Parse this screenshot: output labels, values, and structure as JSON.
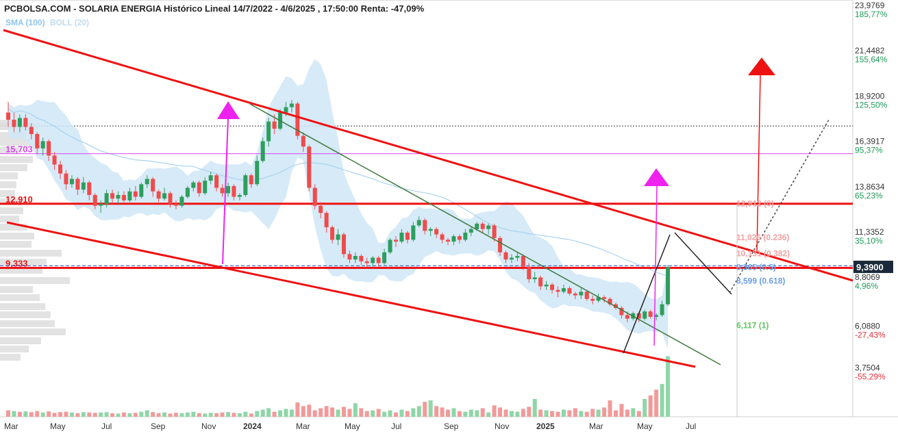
{
  "header": {
    "title": "PCBOLSA.COM - SOLARIA ENERGIA Histórico Lineal 14/7/2022 - 4/6/2025 , 17:50:00 Renta: -47,09%",
    "indicators": {
      "sma": "SMA (100)",
      "boll": "BOLL (20)"
    }
  },
  "chart_data": {
    "type": "candlestick",
    "ylim": [
      2.4,
      23.9769
    ],
    "price_labels": [
      {
        "price": "23,9769",
        "pct": "185,77%"
      },
      {
        "price": "21,4482",
        "pct": "155,64%"
      },
      {
        "price": "18,9200",
        "pct": "125,50%"
      },
      {
        "price": "16,3917",
        "pct": "95,37%"
      },
      {
        "price": "13,8634",
        "pct": "65,23%"
      },
      {
        "price": "11,3352",
        "pct": "35,10%"
      },
      {
        "price": "8,8069",
        "pct": "4,96%"
      },
      {
        "price": "6,0880",
        "pct": "-27,43%"
      },
      {
        "price": "3,7504",
        "pct": "-55,29%"
      }
    ],
    "last_price": {
      "value": 9.39,
      "label": "9,3900"
    },
    "x_labels": [
      {
        "label": "Mar",
        "bold": false
      },
      {
        "label": "May",
        "bold": false
      },
      {
        "label": "Jul",
        "bold": false
      },
      {
        "label": "Sep",
        "bold": false
      },
      {
        "label": "Nov",
        "bold": false
      },
      {
        "label": "2024",
        "bold": true
      },
      {
        "label": "Mar",
        "bold": false
      },
      {
        "label": "May",
        "bold": false
      },
      {
        "label": "Jul",
        "bold": false
      },
      {
        "label": "Sep",
        "bold": false
      },
      {
        "label": "Nov",
        "bold": false
      },
      {
        "label": "2025",
        "bold": true
      },
      {
        "label": "Mar",
        "bold": false
      },
      {
        "label": "May",
        "bold": false
      },
      {
        "label": "Jul",
        "bold": false
      }
    ],
    "levels": [
      {
        "label": "15,703",
        "value": 15.703,
        "color": "#d946ef"
      },
      {
        "label": "12,910",
        "value": 12.91,
        "color": "#ee1111"
      },
      {
        "label": "9,333",
        "value": 9.333,
        "color": "#ee1111"
      }
    ],
    "fibonacci": [
      {
        "label": "12,912 (0)",
        "value": 12.912,
        "color": "#f2a0a0"
      },
      {
        "label": "11,026 (0.236)",
        "value": 11.026,
        "color": "#f2a0a0"
      },
      {
        "label": "10,131 (0.382)",
        "value": 10.131,
        "color": "#f2a0a0"
      },
      {
        "label": "9,365 (0.5)",
        "value": 9.365,
        "color": "#6a9ee8"
      },
      {
        "label": "8,599 (0.618)",
        "value": 8.599,
        "color": "#6a9ee8"
      },
      {
        "label": "6,117 (1)",
        "value": 6.117,
        "color": "#5cc45c"
      }
    ],
    "colors": {
      "up": "#2e9e5e",
      "down": "#ef4b4b",
      "vol_up": "#8fd6a8",
      "vol_down": "#f29a9a",
      "band": "#cfe6f7",
      "sma": "#a8d2f0"
    },
    "candles": [
      [
        18.0,
        18.6,
        17.2,
        17.6
      ],
      [
        17.6,
        18.0,
        16.9,
        17.2
      ],
      [
        17.2,
        17.9,
        16.9,
        17.7
      ],
      [
        17.7,
        17.9,
        17.0,
        17.2
      ],
      [
        17.2,
        17.4,
        16.5,
        16.8
      ],
      [
        16.8,
        16.9,
        15.7,
        16.0
      ],
      [
        16.0,
        16.6,
        15.6,
        16.4
      ],
      [
        16.4,
        16.5,
        15.3,
        15.6
      ],
      [
        15.6,
        15.8,
        14.8,
        15.1
      ],
      [
        15.1,
        15.3,
        14.3,
        14.6
      ],
      [
        14.6,
        14.8,
        13.7,
        14.0
      ],
      [
        14.0,
        14.5,
        13.8,
        14.3
      ],
      [
        14.3,
        14.4,
        13.4,
        13.7
      ],
      [
        13.7,
        14.4,
        13.5,
        14.1
      ],
      [
        14.1,
        14.2,
        13.1,
        13.4
      ],
      [
        13.4,
        13.5,
        12.6,
        12.8
      ],
      [
        12.8,
        13.1,
        12.4,
        12.9
      ],
      [
        12.9,
        13.7,
        12.7,
        13.5
      ],
      [
        13.5,
        13.7,
        12.9,
        13.2
      ],
      [
        13.2,
        13.6,
        12.9,
        13.4
      ],
      [
        13.4,
        13.6,
        13.0,
        13.1
      ],
      [
        13.1,
        13.8,
        13.0,
        13.6
      ],
      [
        13.6,
        13.9,
        13.1,
        13.3
      ],
      [
        13.3,
        14.1,
        13.2,
        14.0
      ],
      [
        14.0,
        14.5,
        13.8,
        14.3
      ],
      [
        14.3,
        14.4,
        13.3,
        13.6
      ],
      [
        13.6,
        13.7,
        13.0,
        13.2
      ],
      [
        13.2,
        13.8,
        13.1,
        13.5
      ],
      [
        13.5,
        13.6,
        12.7,
        12.9
      ],
      [
        12.9,
        13.1,
        12.6,
        12.8
      ],
      [
        12.8,
        13.4,
        12.7,
        13.3
      ],
      [
        13.3,
        13.9,
        13.2,
        13.8
      ],
      [
        13.8,
        14.2,
        13.6,
        14.1
      ],
      [
        14.1,
        14.2,
        13.3,
        13.5
      ],
      [
        13.5,
        14.4,
        13.4,
        14.2
      ],
      [
        14.2,
        14.7,
        14.0,
        14.5
      ],
      [
        14.5,
        14.6,
        13.6,
        13.8
      ],
      [
        13.8,
        14.0,
        13.3,
        13.5
      ],
      [
        13.5,
        14.1,
        13.3,
        13.9
      ],
      [
        13.9,
        14.0,
        13.1,
        13.3
      ],
      [
        13.3,
        13.5,
        13.1,
        13.4
      ],
      [
        13.4,
        14.6,
        13.3,
        14.5
      ],
      [
        14.5,
        14.6,
        13.8,
        14.0
      ],
      [
        14.0,
        15.6,
        13.9,
        15.3
      ],
      [
        15.3,
        16.6,
        15.2,
        16.4
      ],
      [
        16.4,
        17.7,
        16.1,
        17.5
      ],
      [
        17.5,
        17.9,
        16.8,
        17.1
      ],
      [
        17.1,
        18.2,
        17.0,
        18.0
      ],
      [
        18.0,
        18.6,
        17.8,
        18.3
      ],
      [
        18.3,
        18.7,
        18.0,
        18.5
      ],
      [
        18.5,
        18.6,
        16.5,
        16.7
      ],
      [
        16.7,
        16.9,
        15.8,
        16.1
      ],
      [
        16.1,
        16.2,
        13.6,
        13.8
      ],
      [
        13.8,
        14.0,
        12.6,
        12.8
      ],
      [
        12.8,
        13.0,
        12.1,
        12.4
      ],
      [
        12.4,
        12.5,
        11.3,
        11.6
      ],
      [
        11.6,
        11.7,
        10.7,
        10.9
      ],
      [
        10.9,
        11.5,
        10.6,
        11.2
      ],
      [
        11.2,
        11.3,
        9.9,
        10.1
      ],
      [
        10.1,
        10.3,
        9.6,
        9.8
      ],
      [
        9.8,
        10.2,
        9.6,
        10.0
      ],
      [
        10.0,
        10.1,
        9.5,
        9.7
      ],
      [
        9.7,
        9.9,
        9.4,
        9.6
      ],
      [
        9.6,
        10.0,
        9.4,
        9.9
      ],
      [
        9.9,
        10.0,
        9.4,
        9.6
      ],
      [
        9.6,
        10.4,
        9.5,
        10.2
      ],
      [
        10.2,
        11.0,
        10.1,
        10.9
      ],
      [
        10.9,
        11.1,
        10.5,
        10.8
      ],
      [
        10.8,
        11.5,
        10.7,
        11.3
      ],
      [
        11.3,
        11.4,
        10.7,
        10.9
      ],
      [
        10.9,
        11.9,
        10.8,
        11.7
      ],
      [
        11.7,
        12.2,
        11.6,
        12.0
      ],
      [
        12.0,
        12.1,
        11.2,
        11.4
      ],
      [
        11.4,
        11.6,
        11.1,
        11.5
      ],
      [
        11.5,
        11.6,
        11.0,
        11.2
      ],
      [
        11.2,
        11.3,
        10.7,
        10.9
      ],
      [
        10.9,
        11.0,
        10.6,
        10.8
      ],
      [
        10.8,
        11.2,
        10.6,
        11.1
      ],
      [
        11.1,
        11.2,
        10.7,
        10.9
      ],
      [
        10.9,
        11.5,
        10.8,
        11.3
      ],
      [
        11.3,
        11.6,
        11.1,
        11.5
      ],
      [
        11.5,
        11.9,
        11.4,
        11.8
      ],
      [
        11.8,
        11.9,
        11.3,
        11.5
      ],
      [
        11.5,
        11.8,
        11.2,
        11.7
      ],
      [
        11.7,
        11.8,
        10.8,
        11.0
      ],
      [
        11.0,
        11.1,
        10.0,
        10.2
      ],
      [
        10.2,
        10.3,
        9.6,
        9.8
      ],
      [
        9.8,
        10.1,
        9.6,
        9.9
      ],
      [
        9.9,
        10.2,
        9.7,
        10.0
      ],
      [
        10.0,
        10.1,
        9.2,
        9.4
      ],
      [
        9.4,
        9.6,
        8.5,
        8.7
      ],
      [
        8.7,
        9.1,
        8.5,
        8.8
      ],
      [
        8.8,
        8.9,
        8.1,
        8.3
      ],
      [
        8.3,
        8.6,
        8.1,
        8.4
      ],
      [
        8.4,
        8.5,
        7.9,
        8.1
      ],
      [
        8.1,
        8.3,
        7.7,
        8.0
      ],
      [
        8.0,
        8.4,
        7.9,
        8.2
      ],
      [
        8.2,
        8.3,
        7.8,
        7.9
      ],
      [
        7.9,
        8.0,
        7.6,
        7.8
      ],
      [
        7.8,
        8.2,
        7.6,
        8.0
      ],
      [
        8.0,
        8.1,
        7.5,
        7.6
      ],
      [
        7.6,
        7.8,
        7.3,
        7.5
      ],
      [
        7.5,
        7.9,
        7.4,
        7.7
      ],
      [
        7.7,
        7.8,
        7.4,
        7.6
      ],
      [
        7.6,
        7.7,
        7.2,
        7.3
      ],
      [
        7.3,
        7.4,
        7.0,
        7.1
      ],
      [
        7.1,
        7.2,
        6.5,
        6.7
      ],
      [
        6.7,
        6.9,
        6.3,
        6.5
      ],
      [
        6.5,
        6.9,
        6.4,
        6.8
      ],
      [
        6.8,
        6.9,
        6.3,
        6.5
      ],
      [
        6.5,
        7.0,
        6.4,
        6.9
      ],
      [
        6.9,
        7.0,
        6.5,
        6.6
      ],
      [
        6.6,
        6.8,
        6.4,
        6.7
      ],
      [
        6.7,
        7.5,
        6.6,
        7.3
      ],
      [
        7.3,
        9.5,
        7.2,
        9.39
      ]
    ],
    "volumes": [
      18,
      16,
      14,
      15,
      13,
      16,
      12,
      15,
      11,
      13,
      14,
      12,
      10,
      13,
      12,
      11,
      12,
      13,
      10,
      9,
      12,
      10,
      11,
      14,
      18,
      13,
      10,
      12,
      9,
      11,
      10,
      12,
      14,
      10,
      9,
      11,
      10,
      12,
      13,
      11,
      10,
      14,
      9,
      16,
      20,
      24,
      14,
      18,
      22,
      20,
      40,
      30,
      34,
      18,
      24,
      30,
      26,
      20,
      28,
      22,
      38,
      24,
      16,
      18,
      22,
      14,
      18,
      12,
      20,
      16,
      24,
      30,
      42,
      46,
      30,
      26,
      20,
      24,
      16,
      14,
      20,
      18,
      24,
      12,
      32,
      26,
      20,
      16,
      14,
      22,
      28,
      50,
      20,
      18,
      16,
      14,
      20,
      18,
      24,
      16,
      14,
      22,
      20,
      26,
      46,
      18,
      36,
      20,
      24,
      16,
      50,
      60,
      76,
      92,
      170
    ],
    "volume_up": [
      false,
      true,
      false,
      true,
      false,
      false,
      true,
      false,
      false,
      false,
      false,
      true,
      false,
      true,
      false,
      false,
      true,
      true,
      false,
      true,
      false,
      true,
      false,
      true,
      true,
      false,
      false,
      true,
      false,
      false,
      true,
      true,
      true,
      false,
      true,
      true,
      false,
      false,
      true,
      false,
      true,
      true,
      false,
      true,
      true,
      true,
      false,
      true,
      true,
      true,
      false,
      false,
      false,
      false,
      false,
      false,
      false,
      true,
      false,
      false,
      true,
      false,
      false,
      true,
      false,
      true,
      true,
      false,
      true,
      false,
      true,
      true,
      false,
      true,
      false,
      false,
      false,
      true,
      false,
      true,
      true,
      true,
      false,
      true,
      false,
      false,
      false,
      true,
      true,
      false,
      false,
      true,
      false,
      true,
      false,
      false,
      true,
      false,
      false,
      true,
      false,
      false,
      true,
      false,
      false,
      false,
      false,
      false,
      true,
      false,
      true,
      false,
      false,
      true,
      true
    ]
  }
}
